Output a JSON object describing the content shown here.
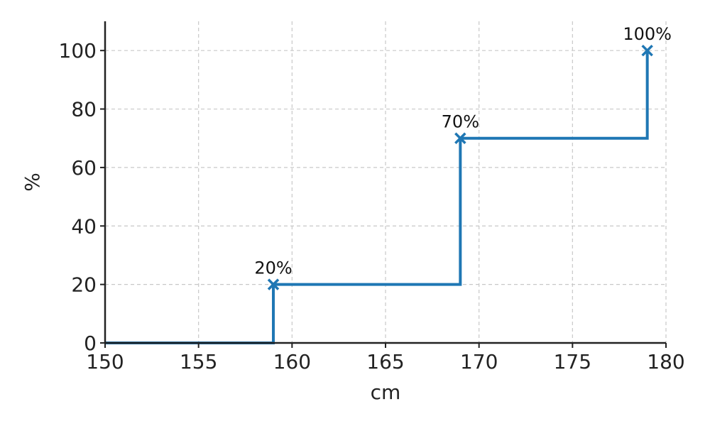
{
  "chart_data": {
    "type": "line",
    "title": "",
    "xlabel": "cm",
    "ylabel": "%",
    "xlim": [
      150,
      180
    ],
    "ylim": [
      0,
      110
    ],
    "xticks": [
      150,
      155,
      160,
      165,
      170,
      175,
      180
    ],
    "yticks": [
      0,
      20,
      40,
      60,
      80,
      100
    ],
    "grid": true,
    "step": "post",
    "series": [
      {
        "color": "#1f77b4",
        "marker": "x",
        "x": [
          150,
          159,
          169,
          179
        ],
        "y": [
          0,
          20,
          70,
          100
        ],
        "markers": [
          {
            "x": 159,
            "y": 20,
            "label": "20%"
          },
          {
            "x": 169,
            "y": 70,
            "label": "70%"
          },
          {
            "x": 179,
            "y": 100,
            "label": "100%"
          }
        ]
      }
    ]
  }
}
